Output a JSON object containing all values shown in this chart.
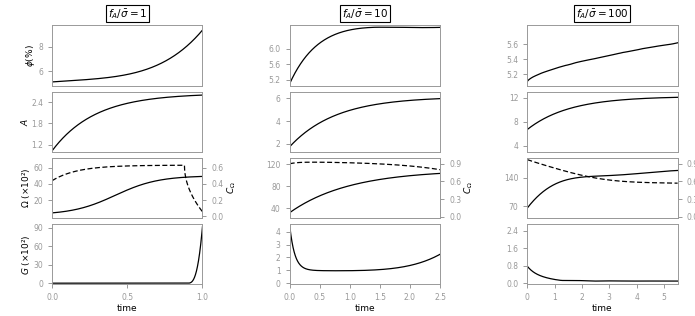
{
  "titles": [
    "$f_A/\\bar{\\sigma}=1$",
    "$f_A/\\bar{\\sigma}=10$",
    "$f_A/\\bar{\\sigma}=100$"
  ],
  "col0": {
    "time_max": 1.0,
    "xticks": [
      0.0,
      0.5,
      1.0
    ],
    "phi_ylim": [
      4.8,
      9.8
    ],
    "phi_yticks": [
      6,
      8
    ],
    "A_ylim": [
      1.0,
      2.7
    ],
    "A_yticks": [
      1.2,
      1.8,
      2.4
    ],
    "omega_ylim": [
      -2,
      72
    ],
    "omega_yticks": [
      20,
      40,
      60
    ],
    "cq_ylim": [
      -0.02,
      0.72
    ],
    "cq_yticks": [
      0.0,
      0.2,
      0.4,
      0.6
    ],
    "G_ylim": [
      -2,
      96
    ],
    "G_yticks": [
      0,
      30,
      60,
      90
    ]
  },
  "col1": {
    "time_max": 2.5,
    "xticks": [
      0.0,
      0.5,
      1.0,
      1.5,
      2.0,
      2.5
    ],
    "phi_ylim": [
      5.05,
      6.6
    ],
    "phi_yticks": [
      5.2,
      5.6,
      6.0
    ],
    "A_ylim": [
      1.3,
      6.6
    ],
    "A_yticks": [
      2,
      4,
      6
    ],
    "omega_ylim": [
      22,
      132
    ],
    "omega_yticks": [
      40,
      80,
      120
    ],
    "cq_ylim": [
      -0.02,
      1.0
    ],
    "cq_yticks": [
      0.0,
      0.3,
      0.6,
      0.9
    ],
    "G_ylim": [
      -0.1,
      4.6
    ],
    "G_yticks": [
      0,
      1,
      2,
      3,
      4
    ]
  },
  "col2": {
    "time_max": 5.5,
    "xticks": [
      0,
      1,
      2,
      3,
      4,
      5
    ],
    "phi_ylim": [
      5.05,
      5.85
    ],
    "phi_yticks": [
      5.2,
      5.4,
      5.6
    ],
    "A_ylim": [
      3.0,
      13.0
    ],
    "A_yticks": [
      4,
      8,
      12
    ],
    "omega_ylim": [
      40,
      190
    ],
    "omega_yticks": [
      70,
      140
    ],
    "cq_ylim": [
      -0.02,
      1.0
    ],
    "cq_yticks": [
      0.0,
      0.3,
      0.6,
      0.9
    ],
    "G_ylim": [
      -0.05,
      2.7
    ],
    "G_yticks": [
      0.0,
      0.8,
      1.6,
      2.4
    ]
  },
  "gray": "#999999",
  "black": "#000000",
  "lw": 0.9,
  "fs_label": 6.5,
  "fs_tick": 5.5,
  "fs_title": 7.5
}
